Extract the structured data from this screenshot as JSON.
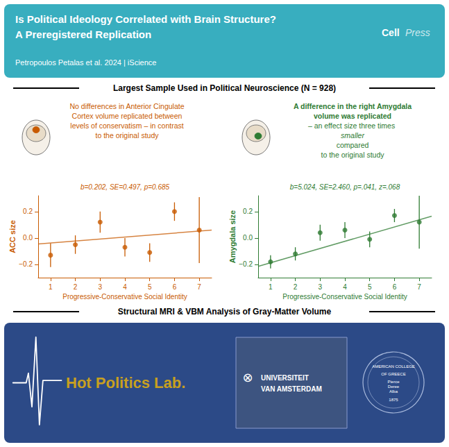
{
  "title": "Is Political Ideology Correlated with Brain Structure?\nA Preregistered Replication",
  "subtitle": "Petropoulos Petalas et al. 2024 | iScience",
  "header": {
    "color": "#38AEBF",
    "annotations": [
      "Cell",
      "Press"
    ]
  },
  "annotations": [
    "Largest Sample Used in Political Neuroscience (N = 928)",
    "Structural MRI & VBM Analysis of Gray-Matter Volume"
  ],
  "footer": {
    "color": "#2C4A87",
    "annotations": [
      {
        "text": "Hot Politics Lab.",
        "color": "#C8A020"
      },
      "⊗",
      "UNIVERSITEIT",
      "VAN AMSTERDAM",
      "AMERICAN COLLEGE",
      "OF GREECE",
      "Pierce\nDeree\nAlba",
      "1875"
    ]
  },
  "chart_data": [
    {
      "type": "scatter",
      "color": "#C85A00",
      "annotations": [
        "b=0.202, SE=0.497, p=0.685"
      ],
      "description": [
        {
          "text": "No differences in Anterior Cingulate\nCortex volume replicated between\nlevels of conservatism – in contrast\nto the original study",
          "font": "normal"
        }
      ],
      "xlabel": "Progressive-Conservative Social Identity",
      "ylabel": "ACC size",
      "xlim": [
        0.5,
        7.5
      ],
      "ylim": [
        -0.3,
        0.32
      ],
      "xticks": [
        1,
        2,
        3,
        4,
        5,
        6,
        7
      ],
      "yticks": [
        {
          "value": -0.2,
          "label": "−0.2"
        },
        {
          "value": 0.0,
          "label": "0.0"
        },
        0.2
      ],
      "grid": false,
      "series": [
        {
          "type": "scatter",
          "marker": "circle",
          "color": "#C85A00",
          "x": [
            1,
            2,
            3,
            4,
            5,
            6,
            7
          ],
          "values": [
            -0.13,
            -0.05,
            0.12,
            -0.07,
            -0.11,
            0.2,
            0.06
          ],
          "yerr": [
            0.09,
            0.07,
            0.08,
            0.07,
            0.07,
            0.07,
            0.25
          ]
        },
        {
          "type": "line",
          "line_style": "solid",
          "color": "#C85A00",
          "x": [
            0.5,
            7.5
          ],
          "values": [
            -0.045,
            0.06
          ]
        }
      ]
    },
    {
      "type": "scatter",
      "color": "#2E7B32",
      "annotations": [
        "b=5.024, SE=2.460, p=.041, z=.068"
      ],
      "description": [
        {
          "text": "A difference in the right Amygdala\nvolume was replicated",
          "font": "bold"
        },
        {
          "text": "– an effect size three times ",
          "font": "normal"
        },
        {
          "text": "smaller",
          "font": "italic"
        },
        {
          "text": "compared\nto the original study",
          "font": "normal"
        }
      ],
      "xlabel": "Progressive-Conservative Social Identity",
      "ylabel": "Amygdala size",
      "xlim": [
        0.5,
        7.5
      ],
      "ylim": [
        -0.3,
        0.32
      ],
      "xticks": [
        1,
        2,
        3,
        4,
        5,
        6,
        7
      ],
      "yticks": [
        {
          "value": -0.2,
          "label": "−0.2"
        },
        {
          "value": 0.0,
          "label": "0.0"
        },
        0.2
      ],
      "grid": false,
      "series": [
        {
          "type": "scatter",
          "marker": "circle",
          "color": "#2E7B32",
          "x": [
            1,
            2,
            3,
            4,
            5,
            6,
            7
          ],
          "values": [
            -0.18,
            -0.12,
            0.04,
            0.06,
            -0.01,
            0.17,
            0.12
          ],
          "yerr": [
            0.05,
            0.05,
            0.06,
            0.06,
            0.06,
            0.05,
            0.2
          ]
        },
        {
          "type": "line",
          "line_style": "solid",
          "color": "#2E7B32",
          "x": [
            0.5,
            7.5
          ],
          "values": [
            -0.215,
            0.165
          ]
        }
      ]
    }
  ]
}
